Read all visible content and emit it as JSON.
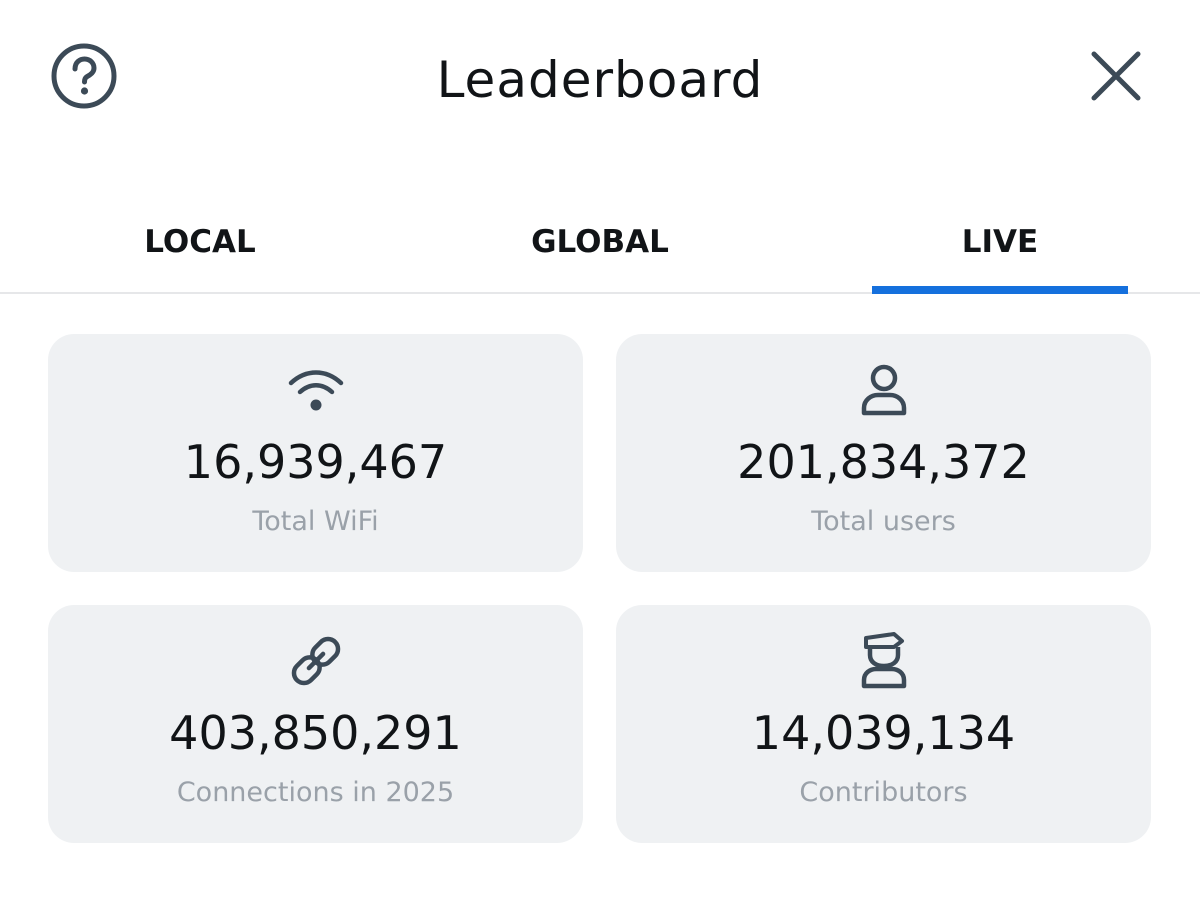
{
  "header": {
    "title": "Leaderboard",
    "help_icon": "help-circle-icon",
    "close_icon": "close-icon"
  },
  "tabs": [
    {
      "label": "LOCAL",
      "active": false
    },
    {
      "label": "GLOBAL",
      "active": false
    },
    {
      "label": "LIVE",
      "active": true
    }
  ],
  "stats": [
    {
      "icon": "wifi-icon",
      "value": "16,939,467",
      "label": "Total WiFi"
    },
    {
      "icon": "user-icon",
      "value": "201,834,372",
      "label": "Total users"
    },
    {
      "icon": "link-icon",
      "value": "403,850,291",
      "label": "Connections in 2025"
    },
    {
      "icon": "contributor-icon",
      "value": "14,039,134",
      "label": "Contributors"
    }
  ],
  "colors": {
    "accent": "#1570dd",
    "icon": "#3c4a57",
    "card_bg": "#eff1f3",
    "label_text": "#9aa1a9"
  }
}
